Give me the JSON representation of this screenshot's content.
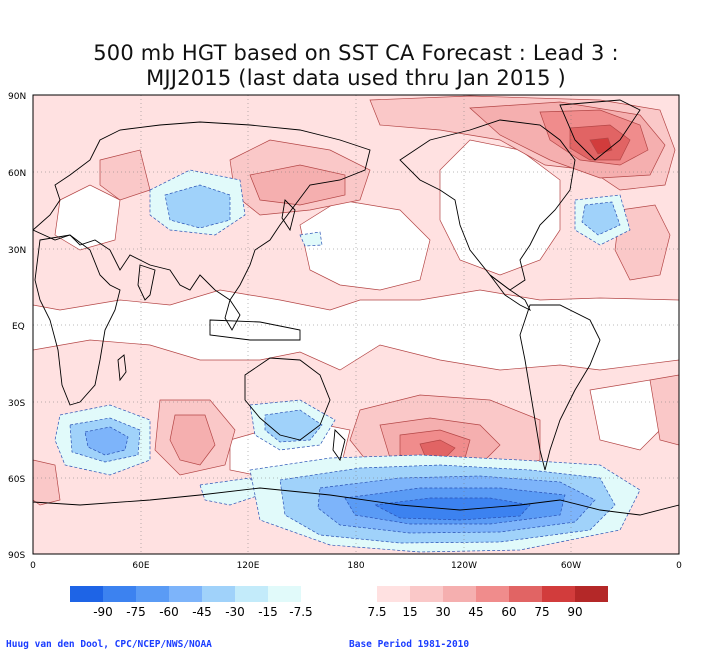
{
  "title": {
    "line1": "500 mb HGT based on SST CA Forecast : Lead 3 :",
    "line2": "MJJ2015 (last data used thru Jan 2015 )"
  },
  "axes": {
    "lat_labels": [
      "90N",
      "60N",
      "30N",
      "EQ",
      "30S",
      "60S",
      "90S"
    ],
    "lon_labels": [
      "0",
      "60E",
      "120E",
      "180",
      "120W",
      "60W",
      "0"
    ]
  },
  "colorbar": {
    "labels": [
      "-90",
      "-75",
      "-60",
      "-45",
      "-30",
      "-15",
      "-7.5",
      "7.5",
      "15",
      "30",
      "45",
      "60",
      "75",
      "90"
    ],
    "neg_colors": [
      "#1e64e6",
      "#3c82f0",
      "#5a9bf5",
      "#7db4fa",
      "#a0d2fa",
      "#c3ebfa",
      "#e1fafa"
    ],
    "pos_colors": [
      "#ffe1e1",
      "#fac8c8",
      "#f5afaf",
      "#f08c8c",
      "#e16464",
      "#d23c3c",
      "#b42828"
    ]
  },
  "credits": {
    "left": "Huug van den Dool, CPC/NCEP/NWS/NOAA",
    "right": "Base Period 1981-2010"
  }
}
